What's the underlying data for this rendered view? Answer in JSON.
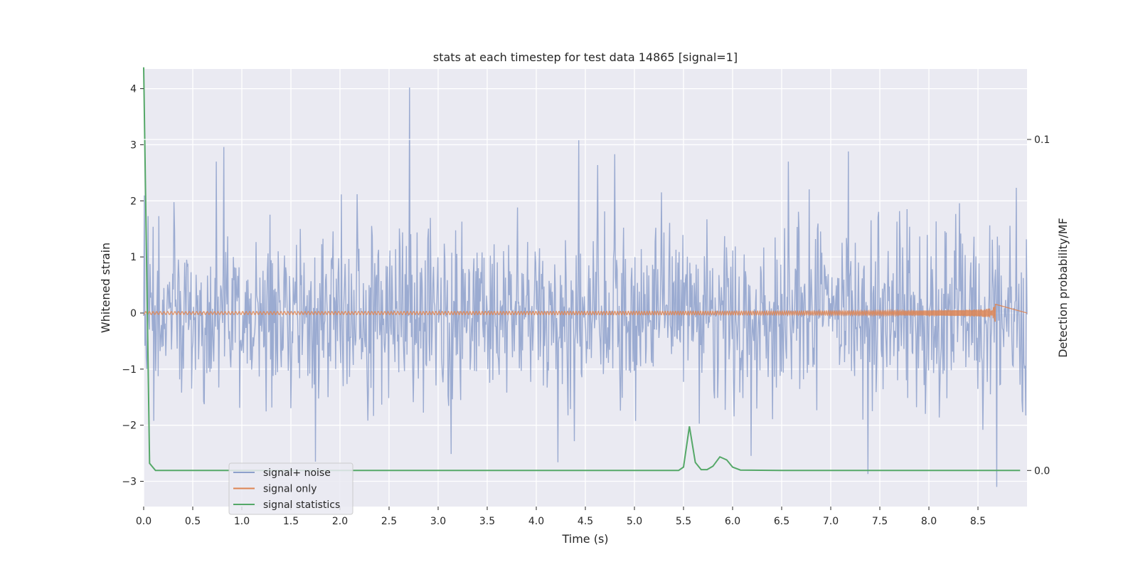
{
  "chart_data": {
    "type": "line",
    "title": "stats at each timestep for test data 14865 [signal=1]",
    "xlabel": "Time (s)",
    "ylabel": "Whitened strain",
    "y2label": "Detection probability/MF",
    "xlim": [
      0.0,
      9.0
    ],
    "ylim": [
      -3.45,
      4.35
    ],
    "y2lim": [
      -0.0085,
      0.0946
    ],
    "x_ticks": [
      0.0,
      0.5,
      1.0,
      1.5,
      2.0,
      2.5,
      3.0,
      3.5,
      4.0,
      4.5,
      5.0,
      5.5,
      6.0,
      6.5,
      7.0,
      7.5,
      8.0,
      8.5
    ],
    "x_tick_labels": [
      "0.0",
      "0.5",
      "1.0",
      "1.5",
      "2.0",
      "2.5",
      "3.0",
      "3.5",
      "4.0",
      "4.5",
      "5.0",
      "5.5",
      "6.0",
      "6.5",
      "7.0",
      "7.5",
      "8.0",
      "8.5"
    ],
    "y_ticks": [
      -3,
      -2,
      -1,
      0,
      1,
      2,
      3,
      4
    ],
    "y_tick_labels": [
      "−3",
      "−2",
      "−1",
      "0",
      "1",
      "2",
      "3",
      "4"
    ],
    "y2_ticks": [
      0.0,
      0.078
    ],
    "y2_tick_labels": [
      "0.0",
      "0.1"
    ],
    "grid": true,
    "legend_position": "lower-left",
    "colors": {
      "background": "#eaeaf2",
      "grid": "#ffffff",
      "signal_noise": "#8da0cb",
      "signal_only": "#dd8452",
      "signal_statistics": "#55a868"
    },
    "series": [
      {
        "name": "signal+ noise",
        "axis": "left",
        "kind": "noise",
        "seed": 14865,
        "duration": 9.0,
        "n_points": 1400,
        "std": 0.78,
        "peaks": [
          {
            "x": 2.71,
            "y": 4.02
          },
          {
            "x": 4.43,
            "y": 3.08
          },
          {
            "x": 4.8,
            "y": 2.83
          },
          {
            "x": 7.18,
            "y": 2.88
          },
          {
            "x": 0.82,
            "y": 2.96
          },
          {
            "x": 8.69,
            "y": -3.1
          },
          {
            "x": 1.75,
            "y": -2.65
          },
          {
            "x": 7.38,
            "y": -2.87
          },
          {
            "x": 4.22,
            "y": -2.66
          }
        ]
      },
      {
        "name": "signal only",
        "axis": "left",
        "kind": "chirp",
        "end": 8.68,
        "max_amplitude": 0.16
      },
      {
        "name": "signal statistics",
        "axis": "right",
        "x": [
          0.0,
          0.06,
          0.12,
          0.5,
          1.0,
          2.0,
          3.0,
          4.0,
          5.0,
          5.45,
          5.5,
          5.56,
          5.62,
          5.68,
          5.74,
          5.8,
          5.87,
          5.94,
          6.0,
          6.08,
          6.5,
          7.0,
          8.0,
          8.93
        ],
        "y": [
          0.095,
          0.0017,
          0.0,
          0.0,
          0.0,
          0.0,
          0.0,
          0.0,
          0.0,
          0.0,
          0.0008,
          0.0104,
          0.0019,
          0.0002,
          0.0002,
          0.001,
          0.0032,
          0.0025,
          0.0008,
          0.0001,
          0.0,
          0.0,
          0.0,
          0.0
        ]
      }
    ]
  }
}
